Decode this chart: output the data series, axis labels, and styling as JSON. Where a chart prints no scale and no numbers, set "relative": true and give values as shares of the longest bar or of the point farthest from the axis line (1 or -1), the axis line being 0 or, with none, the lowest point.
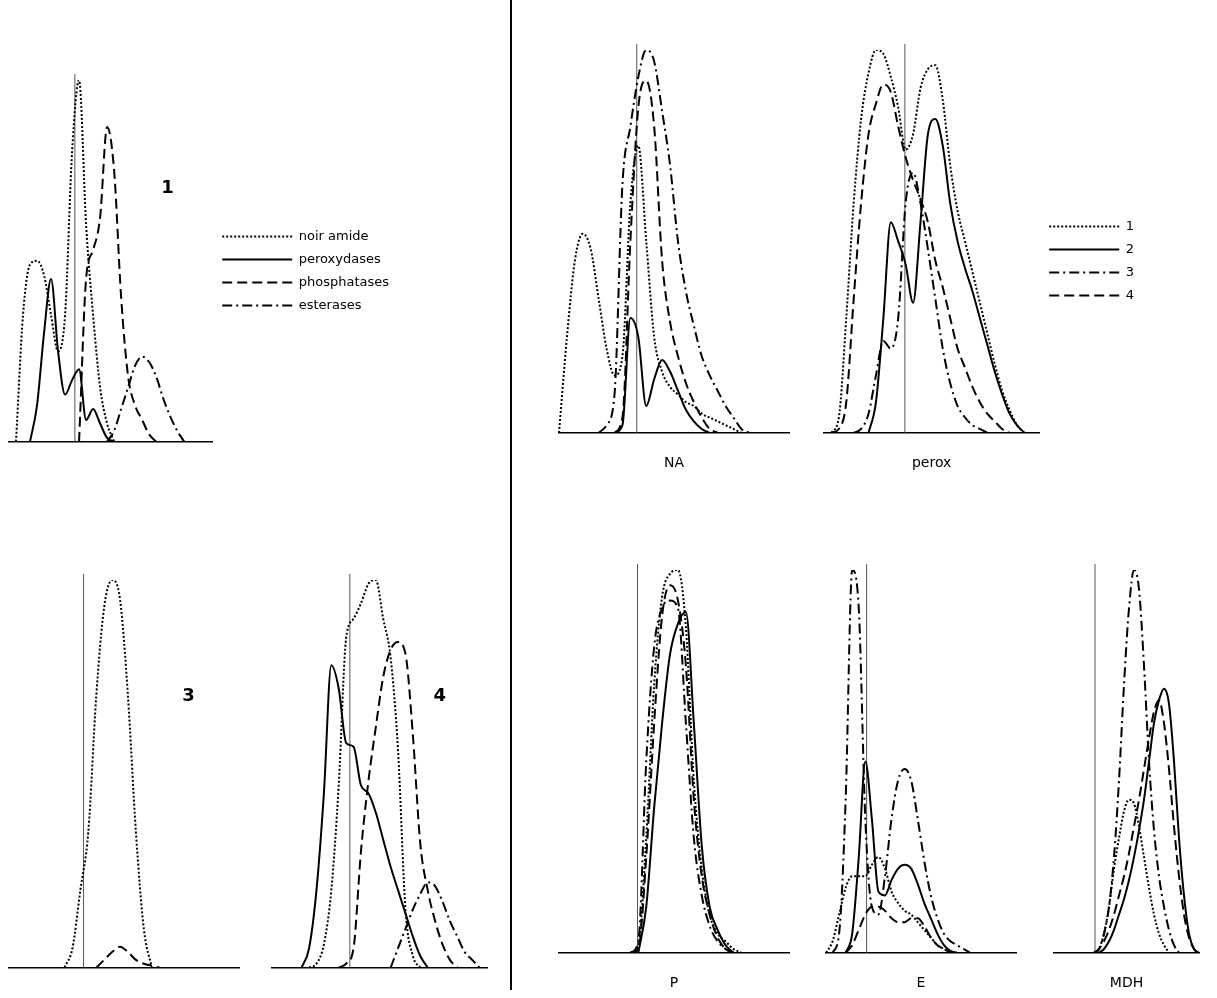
{
  "chart_data": [
    {
      "type": "line",
      "relative": true,
      "title": "1",
      "legend": "right",
      "marker": "none",
      "categories": [
        null,
        null,
        null,
        null,
        null,
        null,
        null,
        null,
        null,
        null,
        null,
        null,
        null,
        null,
        null,
        null,
        null,
        null,
        null,
        null,
        null,
        null,
        null,
        null,
        null,
        null,
        null,
        null,
        null,
        null
      ],
      "series": [
        {
          "name": "noir amide",
          "color": "#000000",
          "line_style": "dotted",
          "values": [
            null,
            0,
            0.35,
            0.49,
            0.5,
            0.46,
            0.35,
            0.25,
            0.35,
            0.8,
            1,
            0.6,
            0.35,
            0.15,
            0.05,
            0,
            null,
            null,
            null,
            null,
            null,
            null,
            null,
            null,
            null,
            null,
            null,
            null,
            null,
            null
          ]
        },
        {
          "name": "peroxydases",
          "color": "#000000",
          "line_style": "solid",
          "values": [
            null,
            null,
            null,
            0,
            0.1,
            0.3,
            0.45,
            0.25,
            0.13,
            0.17,
            0.2,
            0.06,
            0.09,
            0.05,
            0.01,
            0,
            null,
            null,
            null,
            null,
            null,
            null,
            null,
            null,
            null,
            null,
            null,
            null,
            null,
            null
          ]
        },
        {
          "name": "phosphatases",
          "color": "#000000",
          "line_style": "dashed",
          "values": [
            null,
            null,
            null,
            null,
            null,
            null,
            null,
            null,
            null,
            null,
            0,
            0.45,
            0.53,
            0.62,
            0.87,
            0.75,
            0.4,
            0.18,
            0.1,
            0.06,
            0.02,
            0,
            null,
            null,
            null,
            null,
            null,
            null,
            null,
            null
          ]
        },
        {
          "name": "esterases",
          "color": "#000000",
          "line_style": "dashdot",
          "values": [
            null,
            null,
            null,
            null,
            null,
            null,
            null,
            null,
            null,
            null,
            null,
            null,
            null,
            null,
            0,
            0.03,
            0.09,
            0.15,
            0.21,
            0.235,
            0.22,
            0.18,
            0.12,
            0.07,
            0.03,
            0,
            null,
            null,
            null,
            null
          ]
        }
      ]
    },
    {
      "type": "line",
      "relative": true,
      "title": "3",
      "marker": "none",
      "categories": [
        null,
        null,
        null,
        null,
        null,
        null,
        null,
        null,
        null,
        null,
        null,
        null,
        null,
        null,
        null,
        null,
        null,
        null,
        null,
        null,
        null,
        null,
        null,
        null,
        null,
        null,
        null,
        null,
        null,
        null
      ],
      "series": [
        {
          "color": "#000000",
          "line_style": "dotted",
          "values": [
            null,
            null,
            null,
            null,
            null,
            null,
            null,
            0,
            0.05,
            0.2,
            0.35,
            0.7,
            0.93,
            1,
            0.95,
            0.7,
            0.35,
            0.1,
            0,
            null,
            null,
            null,
            null,
            null,
            null,
            null,
            null,
            null,
            null,
            null
          ]
        },
        {
          "color": "#000000",
          "line_style": "dashed",
          "values": [
            null,
            null,
            null,
            null,
            null,
            null,
            null,
            null,
            null,
            null,
            null,
            0,
            0.02,
            0.04,
            0.054,
            0.04,
            0.02,
            0.01,
            0.005,
            0,
            null,
            null,
            null,
            null,
            null,
            null,
            null,
            null,
            null,
            null
          ]
        }
      ]
    },
    {
      "type": "line",
      "relative": true,
      "title": "4",
      "marker": "none",
      "categories": [
        null,
        null,
        null,
        null,
        null,
        null,
        null,
        null,
        null,
        null,
        null,
        null,
        null,
        null,
        null,
        null,
        null,
        null,
        null,
        null,
        null,
        null,
        null,
        null,
        null,
        null,
        null,
        null,
        null,
        null
      ],
      "series": [
        {
          "color": "#000000",
          "line_style": "dotted",
          "values": [
            null,
            null,
            null,
            null,
            null,
            0,
            0.01,
            0.06,
            0.2,
            0.47,
            0.85,
            0.9,
            0.94,
            0.99,
            1,
            0.9,
            0.8,
            0.56,
            0.15,
            0.03,
            0,
            null,
            null,
            null,
            null,
            null,
            null,
            null,
            null,
            null
          ]
        },
        {
          "color": "#000000",
          "line_style": "solid",
          "values": [
            null,
            null,
            null,
            null,
            0,
            0.05,
            0.2,
            0.45,
            0.78,
            0.72,
            0.58,
            0.57,
            0.47,
            0.45,
            0.4,
            0.33,
            0.26,
            0.2,
            0.14,
            0.08,
            0.03,
            0,
            null,
            null,
            null,
            null,
            null,
            null,
            null,
            null
          ]
        },
        {
          "color": "#000000",
          "line_style": "dashed",
          "values": [
            null,
            null,
            null,
            null,
            null,
            null,
            null,
            null,
            null,
            0,
            0.01,
            0.05,
            0.3,
            0.48,
            0.62,
            0.75,
            0.82,
            0.84,
            0.81,
            0.6,
            0.32,
            0.2,
            0.12,
            0.06,
            0.02,
            0,
            null,
            null,
            null,
            null
          ]
        },
        {
          "color": "#000000",
          "line_style": "dashdot",
          "values": [
            null,
            null,
            null,
            null,
            null,
            null,
            null,
            null,
            null,
            null,
            null,
            null,
            null,
            null,
            null,
            null,
            0,
            0.05,
            0.1,
            0.15,
            0.19,
            0.22,
            0.21,
            0.17,
            0.12,
            0.08,
            0.04,
            0.02,
            0,
            null
          ]
        }
      ]
    },
    {
      "type": "line",
      "relative": true,
      "xlabel": "NA",
      "marker": "none",
      "categories": [
        null,
        null,
        null,
        null,
        null,
        null,
        null,
        null,
        null,
        null,
        null,
        null,
        null,
        null,
        null,
        null,
        null,
        null,
        null,
        null,
        null,
        null,
        null,
        null,
        null,
        null,
        null,
        null,
        null,
        null
      ],
      "series": [
        {
          "color": "#000000",
          "line_style": "dotted",
          "values": [
            0,
            0.25,
            0.45,
            0.52,
            0.48,
            0.35,
            0.22,
            0.15,
            0.2,
            0.6,
            0.75,
            0.5,
            0.25,
            0.16,
            0.12,
            0.1,
            0.08,
            0.07,
            0.05,
            0.04,
            0.03,
            0.02,
            0.01,
            0,
            null,
            null,
            null,
            null,
            null,
            null
          ]
        },
        {
          "color": "#000000",
          "line_style": "solid",
          "values": [
            null,
            null,
            null,
            null,
            null,
            null,
            null,
            0,
            0.02,
            0.3,
            0.25,
            0.07,
            0.14,
            0.19,
            0.16,
            0.11,
            0.06,
            0.03,
            0.01,
            0,
            null,
            null,
            null,
            null,
            null,
            null,
            null,
            null,
            null,
            null
          ]
        },
        {
          "color": "#000000",
          "line_style": "dashdot",
          "values": [
            null,
            null,
            null,
            null,
            null,
            0,
            0.02,
            0.1,
            0.65,
            0.8,
            0.93,
            1,
            0.97,
            0.84,
            0.7,
            0.5,
            0.37,
            0.28,
            0.2,
            0.15,
            0.11,
            0.07,
            0.04,
            0.01,
            0,
            null,
            null,
            null,
            null,
            null
          ]
        },
        {
          "color": "#000000",
          "line_style": "dashed",
          "values": [
            null,
            null,
            null,
            null,
            null,
            null,
            null,
            0,
            0.04,
            0.5,
            0.85,
            0.92,
            0.8,
            0.45,
            0.29,
            0.2,
            0.13,
            0.08,
            0.04,
            0.01,
            0,
            null,
            null,
            null,
            null,
            null,
            null,
            null,
            null,
            null
          ]
        }
      ]
    },
    {
      "type": "line",
      "relative": true,
      "xlabel": "perox",
      "legend": "right",
      "marker": "none",
      "categories": [
        null,
        null,
        null,
        null,
        null,
        null,
        null,
        null,
        null,
        null,
        null,
        null,
        null,
        null,
        null,
        null,
        null,
        null,
        null,
        null,
        null,
        null,
        null,
        null,
        null,
        null,
        null,
        null,
        null,
        null
      ],
      "series": [
        {
          "name": "1",
          "color": "#000000",
          "line_style": "dotted",
          "values": [
            null,
            0,
            0.04,
            0.3,
            0.6,
            0.82,
            0.94,
            1,
            0.99,
            0.93,
            0.85,
            0.74,
            0.78,
            0.9,
            0.95,
            0.96,
            0.87,
            0.7,
            0.58,
            0.5,
            0.42,
            0.34,
            0.26,
            0.18,
            0.11,
            0.06,
            0.02,
            0,
            null,
            null
          ]
        },
        {
          "name": "2",
          "color": "#000000",
          "line_style": "solid",
          "values": [
            null,
            null,
            null,
            null,
            null,
            null,
            0,
            0.08,
            0.3,
            0.55,
            0.5,
            0.44,
            0.34,
            0.55,
            0.78,
            0.82,
            0.75,
            0.6,
            0.5,
            0.43,
            0.37,
            0.3,
            0.23,
            0.16,
            0.1,
            0.05,
            0.02,
            0,
            null,
            null
          ]
        },
        {
          "name": "3",
          "color": "#000000",
          "line_style": "dashdot",
          "values": [
            null,
            null,
            null,
            null,
            0,
            0.01,
            0.05,
            0.15,
            0.24,
            0.22,
            0.3,
            0.6,
            0.68,
            0.6,
            0.48,
            0.35,
            0.22,
            0.13,
            0.07,
            0.04,
            0.02,
            0.01,
            0,
            null,
            null,
            null,
            null,
            null,
            null,
            null
          ]
        },
        {
          "name": "4",
          "color": "#000000",
          "line_style": "dashed",
          "values": [
            null,
            0,
            0.01,
            0.08,
            0.35,
            0.6,
            0.78,
            0.86,
            0.91,
            0.89,
            0.8,
            0.72,
            0.66,
            0.61,
            0.55,
            0.45,
            0.38,
            0.3,
            0.22,
            0.17,
            0.12,
            0.08,
            0.05,
            0.03,
            0.01,
            0,
            null,
            null,
            null,
            null
          ]
        }
      ]
    },
    {
      "type": "line",
      "relative": true,
      "xlabel": "P",
      "marker": "none",
      "categories": [
        null,
        null,
        null,
        null,
        null,
        null,
        null,
        null,
        null,
        null,
        null,
        null,
        null,
        null,
        null,
        null,
        null,
        null,
        null,
        null,
        null,
        null,
        null,
        null,
        null,
        null,
        null,
        null,
        null,
        null
      ],
      "series": [
        {
          "color": "#000000",
          "line_style": "dotted",
          "values": [
            null,
            null,
            null,
            null,
            null,
            null,
            null,
            null,
            null,
            0,
            0.02,
            0.3,
            0.7,
            0.93,
            0.99,
            1,
            0.85,
            0.45,
            0.22,
            0.1,
            0.05,
            0.03,
            0.01,
            0,
            null,
            null,
            null,
            null,
            null,
            null
          ]
        },
        {
          "color": "#000000",
          "line_style": "solid",
          "values": [
            null,
            null,
            null,
            null,
            null,
            null,
            null,
            null,
            null,
            null,
            0,
            0.12,
            0.38,
            0.6,
            0.78,
            0.86,
            0.89,
            0.6,
            0.28,
            0.12,
            0.06,
            0.02,
            0,
            null,
            null,
            null,
            null,
            null,
            null,
            null
          ]
        },
        {
          "color": "#000000",
          "line_style": "dashdot",
          "values": [
            null,
            null,
            null,
            null,
            null,
            null,
            null,
            null,
            null,
            0,
            0.03,
            0.5,
            0.8,
            0.9,
            0.92,
            0.9,
            0.6,
            0.3,
            0.15,
            0.07,
            0.03,
            0.01,
            0,
            null,
            null,
            null,
            null,
            null,
            null,
            null
          ]
        },
        {
          "color": "#000000",
          "line_style": "dashed",
          "values": [
            null,
            null,
            null,
            null,
            null,
            null,
            null,
            null,
            null,
            0,
            0.01,
            0.25,
            0.6,
            0.88,
            0.96,
            0.92,
            0.75,
            0.4,
            0.2,
            0.1,
            0.04,
            0.01,
            0,
            null,
            null,
            null,
            null,
            null,
            null,
            null
          ]
        }
      ]
    },
    {
      "type": "line",
      "relative": true,
      "xlabel": "E",
      "marker": "none",
      "categories": [
        null,
        null,
        null,
        null,
        null,
        null,
        null,
        null,
        null,
        null,
        null,
        null,
        null,
        null,
        null,
        null,
        null,
        null,
        null,
        null,
        null,
        null,
        null,
        null,
        null,
        null,
        null,
        null,
        null,
        null
      ],
      "series": [
        {
          "color": "#000000",
          "line_style": "dotted",
          "values": [
            0,
            0.03,
            0.1,
            0.17,
            0.2,
            0.2,
            0.2,
            0.23,
            0.25,
            0.22,
            0.16,
            0.13,
            0.11,
            0.1,
            0.08,
            0.06,
            0.04,
            0.02,
            0.01,
            0,
            null,
            null,
            null,
            null,
            null,
            null,
            null,
            null,
            null,
            null
          ]
        },
        {
          "color": "#000000",
          "line_style": "solid",
          "values": [
            null,
            null,
            null,
            0,
            0.05,
            0.25,
            0.5,
            0.35,
            0.16,
            0.15,
            0.19,
            0.22,
            0.23,
            0.22,
            0.18,
            0.13,
            0.09,
            0.05,
            0.02,
            0.005,
            0,
            null,
            null,
            null,
            null,
            null,
            null,
            null,
            null,
            null
          ]
        },
        {
          "color": "#000000",
          "line_style": "dashdot",
          "values": [
            null,
            0,
            0.05,
            0.4,
            1,
            0.9,
            0.35,
            0.12,
            0.1,
            0.2,
            0.35,
            0.45,
            0.48,
            0.45,
            0.35,
            0.24,
            0.15,
            0.09,
            0.05,
            0.03,
            0.02,
            0.01,
            0,
            null,
            null,
            null,
            null,
            null,
            null,
            null
          ]
        },
        {
          "color": "#000000",
          "line_style": "dashed",
          "values": [
            null,
            null,
            null,
            0,
            0.02,
            0.06,
            0.1,
            0.12,
            0.12,
            0.11,
            0.09,
            0.08,
            0.08,
            0.09,
            0.09,
            0.07,
            0.04,
            0.02,
            0.01,
            0,
            null,
            null,
            null,
            null,
            null,
            null,
            null,
            null,
            null,
            null
          ]
        }
      ]
    },
    {
      "type": "line",
      "relative": true,
      "xlabel": "MDH",
      "marker": "none",
      "categories": [
        null,
        null,
        null,
        null,
        null,
        null,
        null,
        null,
        null,
        null,
        null,
        null,
        null,
        null,
        null,
        null,
        null,
        null,
        null,
        null,
        null,
        null,
        null,
        null,
        null,
        null,
        null,
        null,
        null,
        null
      ],
      "series": [
        {
          "color": "#000000",
          "line_style": "dotted",
          "values": [
            null,
            null,
            null,
            null,
            null,
            null,
            null,
            null,
            0,
            0.01,
            0.05,
            0.12,
            0.22,
            0.3,
            0.37,
            0.4,
            0.39,
            0.33,
            0.25,
            0.17,
            0.1,
            0.05,
            0.02,
            0,
            null,
            null,
            null,
            null,
            null,
            null
          ]
        },
        {
          "color": "#000000",
          "line_style": "solid",
          "values": [
            null,
            null,
            null,
            null,
            null,
            null,
            null,
            null,
            null,
            0,
            0.01,
            0.03,
            0.06,
            0.1,
            0.14,
            0.19,
            0.25,
            0.32,
            0.4,
            0.5,
            0.6,
            0.66,
            0.69,
            0.65,
            0.5,
            0.3,
            0.15,
            0.05,
            0.01,
            0
          ]
        },
        {
          "color": "#000000",
          "line_style": "dashdot",
          "values": [
            null,
            null,
            null,
            null,
            null,
            null,
            null,
            null,
            0,
            0.01,
            0.05,
            0.12,
            0.25,
            0.45,
            0.7,
            0.9,
            1,
            0.95,
            0.75,
            0.5,
            0.32,
            0.2,
            0.12,
            0.06,
            0.02,
            0,
            null,
            null,
            null,
            null
          ]
        },
        {
          "color": "#000000",
          "line_style": "dashed",
          "values": [
            null,
            null,
            null,
            null,
            null,
            null,
            null,
            null,
            0,
            0.01,
            0.03,
            0.06,
            0.1,
            0.15,
            0.2,
            0.26,
            0.33,
            0.4,
            0.48,
            0.56,
            0.63,
            0.66,
            0.6,
            0.48,
            0.33,
            0.2,
            0.1,
            0.04,
            0.01,
            0
          ]
        }
      ]
    }
  ]
}
